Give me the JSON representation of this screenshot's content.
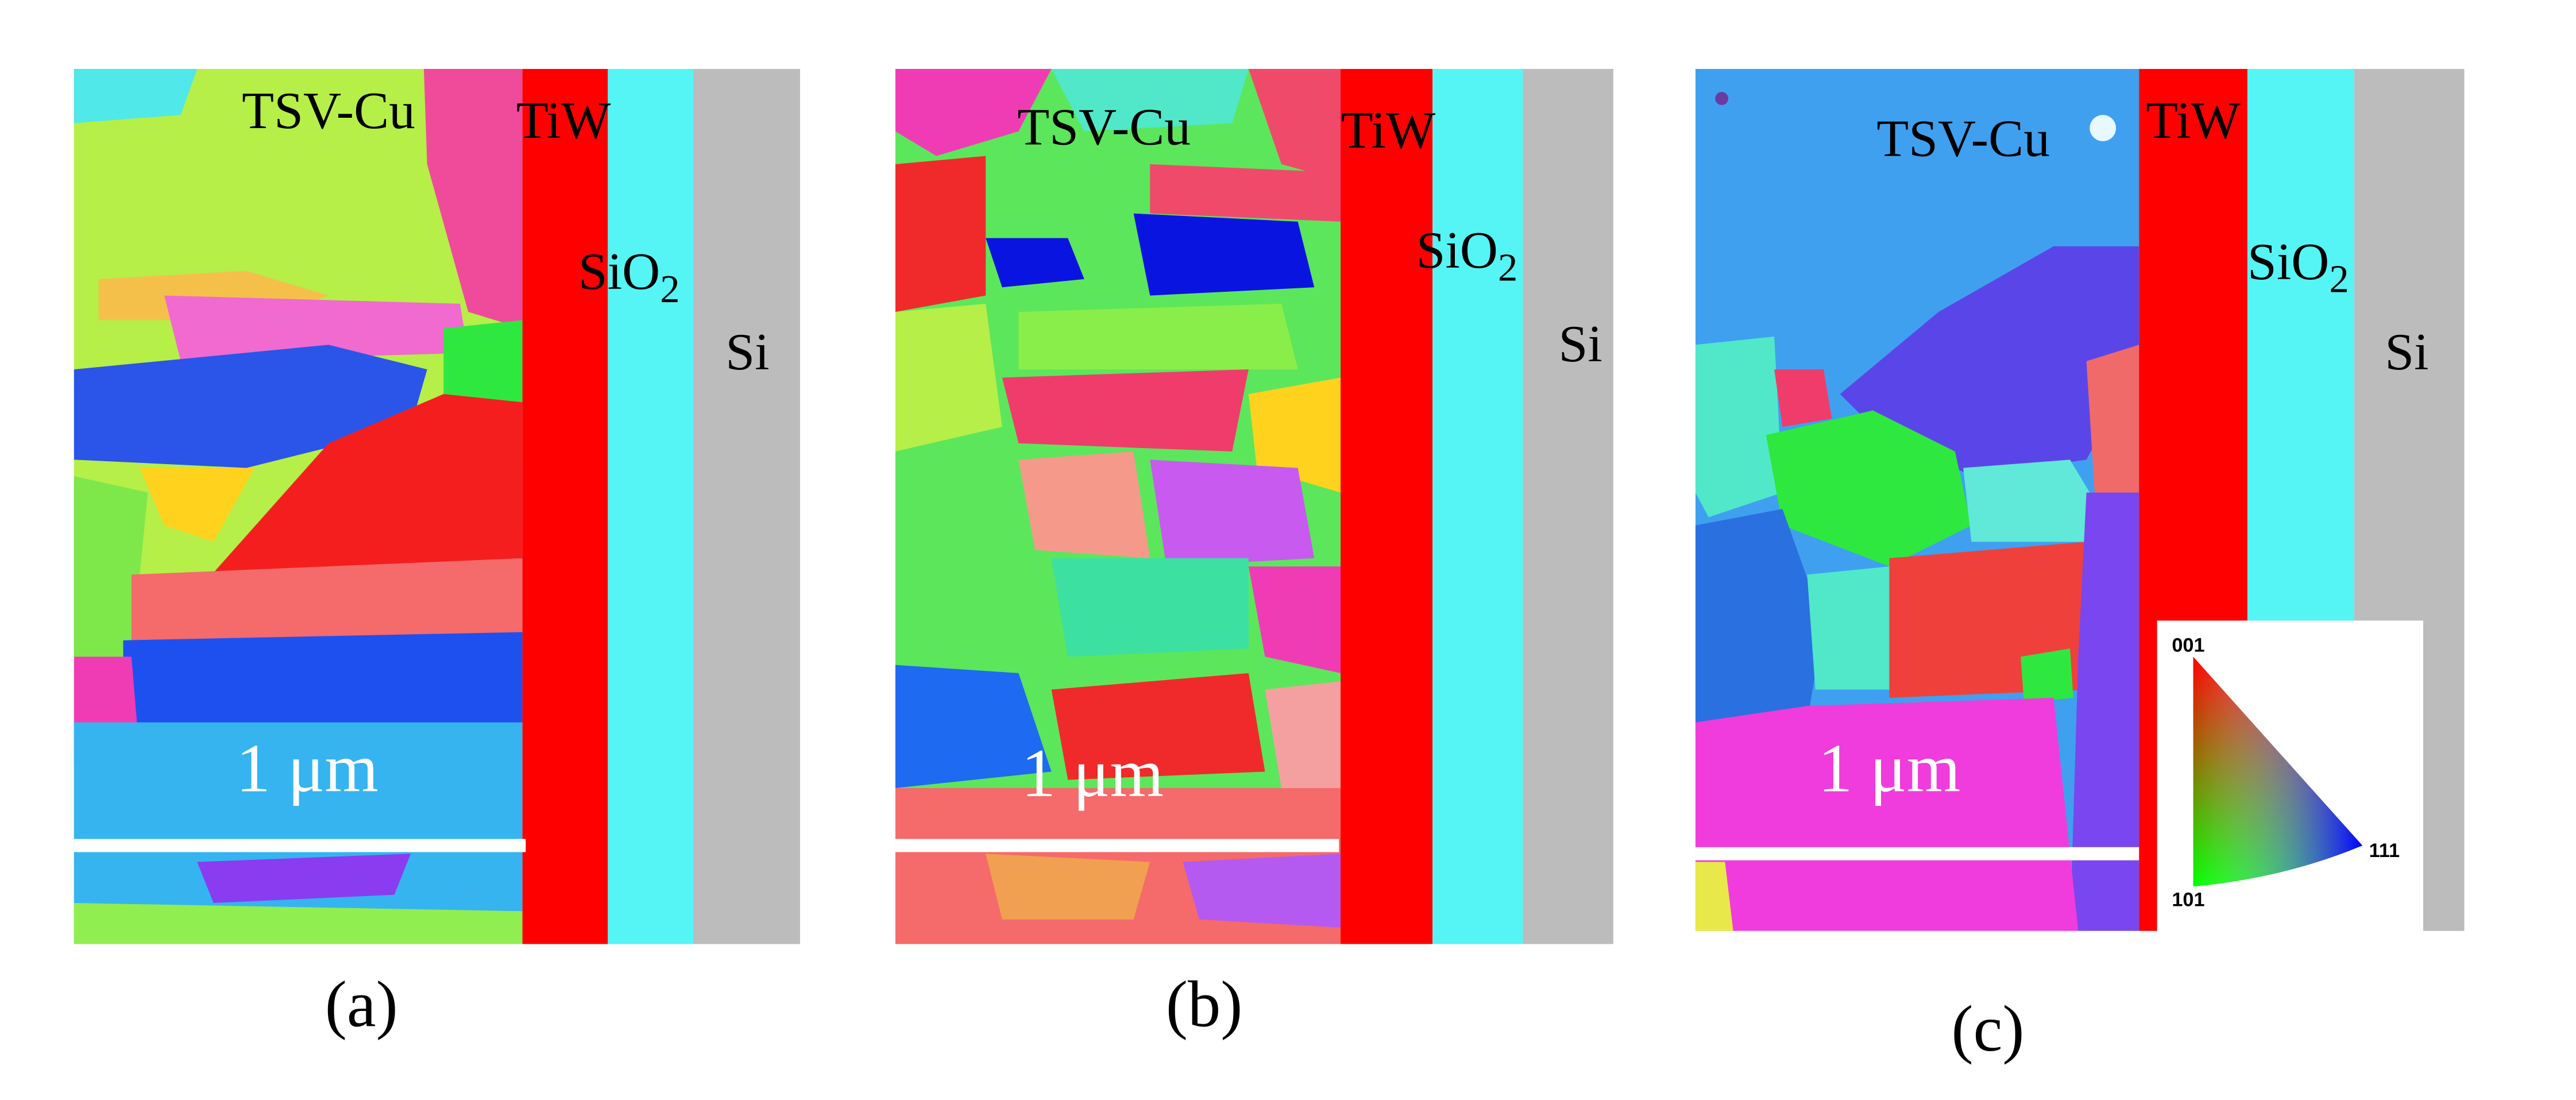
{
  "panels": [
    {
      "caption": "(a)",
      "cu": "TSV-Cu",
      "tiw": "TiW",
      "sio2": "SiO",
      "sio2_sub": "2",
      "si": "Si",
      "scale_bar": "1 μm"
    },
    {
      "caption": "(b)",
      "cu": "TSV-Cu",
      "tiw": "TiW",
      "sio2": "SiO",
      "sio2_sub": "2",
      "si": "Si",
      "scale_bar": "1 μm"
    },
    {
      "caption": "(c)",
      "cu": "TSV-Cu",
      "tiw": "TiW",
      "sio2": "SiO",
      "sio2_sub": "2",
      "si": "Si",
      "scale_bar": "1 μm"
    }
  ],
  "legend": {
    "top": "001",
    "right": "111",
    "bottom": "101"
  }
}
